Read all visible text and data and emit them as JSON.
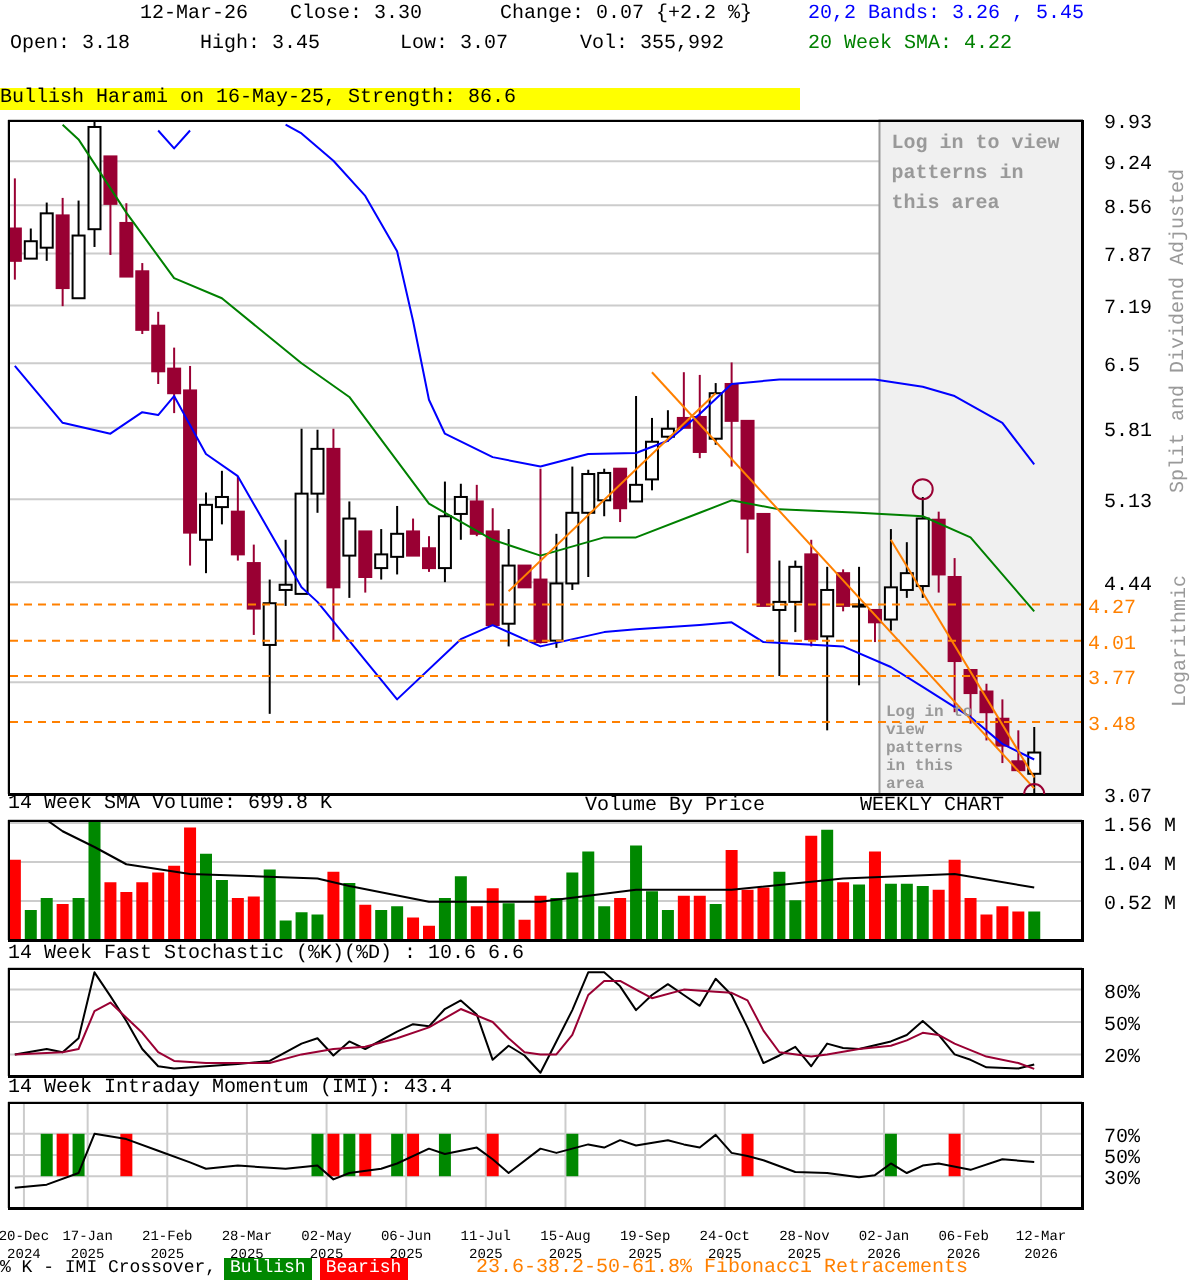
{
  "chart_data": [
    {
      "type": "candlestick",
      "x": [
        "2024-12-16",
        "2024-12-23",
        "2024-12-30",
        "2025-01-06",
        "2025-01-13",
        "2025-01-20",
        "2025-01-27",
        "2025-02-03",
        "2025-02-10",
        "2025-02-17",
        "2025-02-24",
        "2025-03-03",
        "2025-03-10",
        "2025-03-17",
        "2025-03-24",
        "2025-03-31",
        "2025-04-07",
        "2025-04-14",
        "2025-04-21",
        "2025-04-28",
        "2025-05-05",
        "2025-05-12",
        "2025-05-19",
        "2025-05-26",
        "2025-06-02",
        "2025-06-09",
        "2025-06-16",
        "2025-06-23",
        "2025-06-30",
        "2025-07-07",
        "2025-07-14",
        "2025-07-21",
        "2025-07-28",
        "2025-08-04",
        "2025-08-11",
        "2025-08-18",
        "2025-08-25",
        "2025-09-01",
        "2025-09-08",
        "2025-09-15",
        "2025-09-22",
        "2025-09-29",
        "2025-10-06",
        "2025-10-13",
        "2025-10-20",
        "2025-10-27",
        "2025-11-03",
        "2025-11-10",
        "2025-11-17",
        "2025-11-24",
        "2025-12-01",
        "2025-12-08",
        "2025-12-15",
        "2025-12-22",
        "2025-12-29",
        "2026-01-05",
        "2026-01-12",
        "2026-01-19",
        "2026-01-26",
        "2026-02-02",
        "2026-02-09",
        "2026-02-16",
        "2026-02-23",
        "2026-03-02",
        "2026-03-09"
      ],
      "ohlc": [
        [
          8.22,
          8.97,
          7.52,
          7.77
        ],
        [
          7.8,
          8.22,
          7.8,
          8.04
        ],
        [
          7.95,
          8.6,
          7.77,
          8.44
        ],
        [
          8.41,
          8.67,
          7.18,
          7.41
        ],
        [
          7.28,
          8.63,
          7.28,
          8.12
        ],
        [
          8.21,
          9.9,
          7.96,
          9.81
        ],
        [
          9.32,
          9.32,
          7.85,
          8.58
        ],
        [
          8.3,
          8.59,
          7.56,
          7.56
        ],
        [
          7.63,
          7.74,
          6.84,
          6.89
        ],
        [
          6.94,
          7.11,
          6.27,
          6.41
        ],
        [
          6.44,
          6.68,
          5.96,
          6.17
        ],
        [
          6.2,
          6.47,
          4.57,
          4.84
        ],
        [
          4.78,
          5.19,
          4.51,
          5.08
        ],
        [
          5.06,
          5.39,
          4.91,
          5.15
        ],
        [
          5.02,
          5.34,
          4.61,
          4.66
        ],
        [
          4.59,
          4.74,
          4.05,
          4.24
        ],
        [
          3.98,
          4.46,
          3.53,
          4.28
        ],
        [
          4.38,
          4.78,
          4.26,
          4.42
        ],
        [
          4.35,
          5.8,
          4.35,
          5.18
        ],
        [
          5.18,
          5.79,
          5.01,
          5.6
        ],
        [
          5.6,
          5.8,
          4.01,
          4.4
        ],
        [
          4.65,
          5.11,
          4.32,
          4.96
        ],
        [
          4.85,
          4.85,
          4.36,
          4.48
        ],
        [
          4.55,
          4.87,
          4.46,
          4.66
        ],
        [
          4.64,
          5.07,
          4.5,
          4.83
        ],
        [
          4.85,
          4.96,
          4.65,
          4.65
        ],
        [
          4.71,
          4.81,
          4.52,
          4.55
        ],
        [
          4.55,
          5.29,
          4.44,
          4.98
        ],
        [
          5.0,
          5.27,
          4.78,
          5.15
        ],
        [
          5.11,
          5.26,
          4.81,
          4.83
        ],
        [
          4.85,
          5.05,
          4.12,
          4.12
        ],
        [
          4.13,
          4.87,
          3.97,
          4.57
        ],
        [
          4.57,
          4.57,
          4.4,
          4.4
        ],
        [
          4.46,
          5.41,
          3.99,
          4.0
        ],
        [
          4.01,
          4.83,
          3.96,
          4.43
        ],
        [
          4.43,
          5.43,
          4.38,
          5.01
        ],
        [
          5.01,
          5.4,
          4.48,
          5.36
        ],
        [
          5.12,
          5.41,
          4.98,
          5.37
        ],
        [
          5.41,
          5.41,
          4.93,
          5.05
        ],
        [
          5.11,
          6.14,
          5.11,
          5.26
        ],
        [
          5.31,
          5.91,
          5.21,
          5.67
        ],
        [
          5.72,
          5.99,
          5.67,
          5.8
        ],
        [
          5.91,
          6.4,
          5.81,
          5.81
        ],
        [
          5.92,
          6.37,
          5.51,
          5.57
        ],
        [
          5.7,
          6.28,
          5.64,
          6.17
        ],
        [
          6.27,
          6.51,
          5.43,
          5.88
        ],
        [
          5.88,
          5.88,
          4.67,
          4.96
        ],
        [
          5.0,
          5.0,
          4.26,
          4.26
        ],
        [
          4.23,
          4.61,
          3.77,
          4.29
        ],
        [
          4.29,
          4.61,
          4.07,
          4.56
        ],
        [
          4.66,
          4.78,
          3.97,
          4.02
        ],
        [
          4.04,
          4.56,
          3.43,
          4.38
        ],
        [
          4.51,
          4.54,
          4.22,
          4.26
        ],
        [
          4.27,
          4.56,
          3.71,
          4.27
        ],
        [
          4.23,
          4.23,
          4.0,
          4.14
        ],
        [
          4.16,
          4.87,
          4.08,
          4.4
        ],
        [
          4.38,
          4.76,
          4.32,
          4.51
        ],
        [
          4.41,
          5.15,
          4.32,
          4.96
        ],
        [
          4.95,
          5.02,
          4.36,
          4.5
        ],
        [
          4.48,
          4.63,
          3.54,
          3.87
        ],
        [
          3.81,
          3.81,
          3.47,
          3.66
        ],
        [
          3.67,
          3.72,
          3.37,
          3.54
        ],
        [
          3.5,
          3.62,
          3.24,
          3.34
        ],
        [
          3.25,
          3.43,
          3.19,
          3.2
        ],
        [
          3.18,
          3.45,
          3.07,
          3.3
        ]
      ],
      "colors": [
        "#990033",
        "#ffffff",
        "#ffffff",
        "#990033",
        "#ffffff",
        "#ffffff",
        "#990033",
        "#990033",
        "#990033",
        "#990033",
        "#990033",
        "#990033",
        "#ffffff",
        "#ffffff",
        "#990033",
        "#990033",
        "#ffffff",
        "#ffffff",
        "#ffffff",
        "#ffffff",
        "#990033",
        "#ffffff",
        "#990033",
        "#ffffff",
        "#ffffff",
        "#990033",
        "#990033",
        "#ffffff",
        "#ffffff",
        "#990033",
        "#990033",
        "#ffffff",
        "#990033",
        "#990033",
        "#ffffff",
        "#ffffff",
        "#ffffff",
        "#ffffff",
        "#990033",
        "#ffffff",
        "#ffffff",
        "#ffffff",
        "#990033",
        "#990033",
        "#ffffff",
        "#990033",
        "#990033",
        "#990033",
        "#ffffff",
        "#ffffff",
        "#990033",
        "#ffffff",
        "#990033",
        "#ffffff",
        "#990033",
        "#ffffff",
        "#ffffff",
        "#ffffff",
        "#990033",
        "#990033",
        "#990033",
        "#990033",
        "#990033",
        "#990033",
        "#ffffff"
      ],
      "series": [
        {
          "type": "line",
          "name": "20,2 Bands: 3.26 , 5.45",
          "color": "#0000ff",
          "x": [
            "2025-02-17",
            "2025-02-24",
            "2025-03-03",
            "2025-03-10",
            "2025-04-14",
            "2025-04-21",
            "2025-05-05",
            "2025-05-19",
            "2025-06-02",
            "2025-06-09",
            "2025-06-16",
            "2025-06-23",
            "2025-07-14",
            "2025-08-04",
            "2025-08-25",
            "2025-09-15",
            "2025-09-29",
            "2025-10-13",
            "2025-10-27",
            "2025-11-17",
            "2025-12-29",
            "2026-01-19",
            "2026-02-02",
            "2026-02-23",
            "2026-03-09"
          ],
          "values": [
            9.75,
            9.45,
            9.75,
            null,
            9.85,
            9.7,
            9.25,
            8.7,
            7.9,
            7.0,
            6.1,
            5.75,
            5.52,
            5.43,
            5.55,
            5.56,
            5.68,
            5.95,
            6.27,
            6.32,
            6.32,
            6.24,
            6.14,
            5.86,
            5.45
          ]
        },
        {
          "type": "line",
          "color": "#0000ff",
          "x": [
            "2024-12-16",
            "2025-01-06",
            "2025-01-27",
            "2025-02-10",
            "2025-02-17",
            "2025-02-24",
            "2025-03-10",
            "2025-03-24",
            "2025-04-21",
            "2025-04-28",
            "2025-06-02",
            "2025-06-30",
            "2025-07-14",
            "2025-08-04",
            "2025-09-01",
            "2025-09-15",
            "2025-10-13",
            "2025-10-27",
            "2025-11-10",
            "2025-12-15",
            "2026-01-05",
            "2026-01-19",
            "2026-02-09",
            "2026-02-23",
            "2026-03-09"
          ],
          "values": [
            6.47,
            5.86,
            5.75,
            5.97,
            5.94,
            6.14,
            5.55,
            5.34,
            4.4,
            4.29,
            3.62,
            4.02,
            4.12,
            3.97,
            4.07,
            4.09,
            4.12,
            4.14,
            4.0,
            3.97,
            3.83,
            3.7,
            3.51,
            3.35,
            3.26
          ]
        },
        {
          "type": "line",
          "name": "20 Week SMA: 4.22",
          "color": "#008000",
          "x": [
            "2025-01-06",
            "2025-01-13",
            "2025-02-03",
            "2025-02-24",
            "2025-03-17",
            "2025-04-21",
            "2025-05-12",
            "2025-06-16",
            "2025-07-14",
            "2025-08-04",
            "2025-09-01",
            "2025-09-15",
            "2025-10-13",
            "2025-10-27",
            "2025-11-17",
            "2025-12-22",
            "2026-01-19",
            "2026-02-09",
            "2026-03-09"
          ],
          "values": [
            9.85,
            9.6,
            8.45,
            7.54,
            7.28,
            6.5,
            6.13,
            5.09,
            4.78,
            4.65,
            4.8,
            4.8,
            5.01,
            5.12,
            5.04,
            5.01,
            4.98,
            4.8,
            4.22
          ]
        },
        {
          "type": "line",
          "color": "#ff8000",
          "x": [
            "2025-07-21",
            "2025-10-20"
          ],
          "values": [
            4.37,
            6.17
          ]
        },
        {
          "type": "line",
          "color": "#ff8000",
          "x": [
            "2025-09-22",
            "2026-03-09"
          ],
          "values": [
            6.4,
            3.1
          ]
        },
        {
          "type": "line",
          "color": "#ff8000",
          "x": [
            "2026-01-05",
            "2026-03-09"
          ],
          "values": [
            4.78,
            3.16
          ]
        },
        {
          "type": "scatter",
          "marker": "circle",
          "color": "#990033",
          "x": [
            "2026-01-19",
            "2026-03-09"
          ],
          "values": [
            5.22,
            3.07
          ]
        }
      ],
      "ylabel": "Split and Dividend Adjusted",
      "log": true,
      "ylim": [
        3.07,
        9.93
      ],
      "yticks": [
        9.93,
        9.24,
        8.56,
        7.87,
        7.19,
        6.5,
        5.81,
        5.13,
        4.44,
        {
          "value": 3.73,
          "label": null
        },
        3.07
      ],
      "xlim": [
        "2024-12-13",
        "2026-03-30"
      ],
      "xticks": [
        {
          "value": "2025-01-17",
          "label": null
        },
        {
          "value": "2025-02-21",
          "label": null
        },
        {
          "value": "2025-03-28",
          "label": null
        },
        {
          "value": "2025-05-02",
          "label": null
        },
        {
          "value": "2025-06-06",
          "label": null
        },
        {
          "value": "2025-07-11",
          "label": null
        },
        {
          "value": "2025-08-15",
          "label": null
        },
        {
          "value": "2025-09-19",
          "label": null
        },
        {
          "value": "2025-10-24",
          "label": null
        },
        {
          "value": "2025-11-28",
          "label": null
        },
        {
          "value": "2026-01-02",
          "label": null
        },
        {
          "value": "2026-02-06",
          "label": null
        },
        {
          "value": "2026-03-12",
          "label": null
        }
      ],
      "tick_labels": "y",
      "grid": true,
      "ref_lines": [
        {
          "axis": "y",
          "value": 4.27,
          "label": "4.27",
          "color": "#ff8000",
          "line_style": "dashed"
        },
        {
          "axis": "y",
          "value": 4.01,
          "label": "4.01",
          "color": "#ff8000",
          "line_style": "dashed"
        },
        {
          "axis": "y",
          "value": 3.77,
          "label": "3.77",
          "color": "#ff8000",
          "line_style": "dashed"
        },
        {
          "axis": "y",
          "value": 3.48,
          "label": "3.48",
          "color": "#ff8000",
          "line_style": "dashed"
        }
      ],
      "bands": [
        {
          "axis": "x",
          "from": "2025-12-31",
          "to": "2026-03-30",
          "label": "Log in to view patterns in this area",
          "color": "#f0f0f0"
        }
      ],
      "annotations": [
        "12-Mar-26",
        "Close: 3.30",
        "Change: 0.07 {+2.2 %}",
        "Open: 3.18",
        "High: 3.45",
        "Low: 3.07",
        "Vol: 355,992",
        "Bullish Harami on 16-May-25, Strength: 86.6",
        "Log in to view patterns in this area",
        "Logarithmic",
        "Volume By Price",
        "WEEKLY CHART",
        "23.6-38.2-50-61.8% Fibonacci Retracements"
      ]
    },
    {
      "type": "bar",
      "title": "14 Week SMA Volume: 699.8 K",
      "x": [
        "2024-12-16",
        "2024-12-23",
        "2024-12-30",
        "2025-01-06",
        "2025-01-13",
        "2025-01-20",
        "2025-01-27",
        "2025-02-03",
        "2025-02-10",
        "2025-02-17",
        "2025-02-24",
        "2025-03-03",
        "2025-03-10",
        "2025-03-17",
        "2025-03-24",
        "2025-03-31",
        "2025-04-07",
        "2025-04-14",
        "2025-04-21",
        "2025-04-28",
        "2025-05-05",
        "2025-05-12",
        "2025-05-19",
        "2025-05-26",
        "2025-06-02",
        "2025-06-09",
        "2025-06-16",
        "2025-06-23",
        "2025-06-30",
        "2025-07-07",
        "2025-07-14",
        "2025-07-21",
        "2025-07-28",
        "2025-08-04",
        "2025-08-11",
        "2025-08-18",
        "2025-08-25",
        "2025-09-01",
        "2025-09-08",
        "2025-09-15",
        "2025-09-22",
        "2025-09-29",
        "2025-10-06",
        "2025-10-13",
        "2025-10-20",
        "2025-10-27",
        "2025-11-03",
        "2025-11-10",
        "2025-11-17",
        "2025-11-24",
        "2025-12-01",
        "2025-12-08",
        "2025-12-15",
        "2025-12-22",
        "2025-12-29",
        "2026-01-05",
        "2026-01-12",
        "2026-01-19",
        "2026-01-26",
        "2026-02-02",
        "2026-02-09",
        "2026-02-16",
        "2026-02-23",
        "2026-03-02",
        "2026-03-09"
      ],
      "values": [
        1.07,
        0.4,
        0.56,
        0.48,
        0.56,
        1.6,
        0.77,
        0.64,
        0.77,
        0.9,
        0.99,
        1.5,
        1.15,
        0.8,
        0.56,
        0.58,
        0.94,
        0.26,
        0.37,
        0.34,
        0.91,
        0.76,
        0.47,
        0.4,
        0.45,
        0.3,
        0.19,
        0.56,
        0.85,
        0.45,
        0.69,
        0.49,
        0.27,
        0.59,
        0.56,
        0.9,
        1.18,
        0.45,
        0.56,
        1.26,
        0.65,
        0.4,
        0.59,
        0.59,
        0.48,
        1.2,
        0.67,
        0.7,
        0.91,
        0.53,
        1.39,
        1.47,
        0.77,
        0.74,
        1.18,
        0.75,
        0.75,
        0.72,
        0.67,
        1.07,
        0.56,
        0.34,
        0.45,
        0.38,
        0.38
      ],
      "colors": [
        "#ff0000",
        "#008800",
        "#008800",
        "#ff0000",
        "#008800",
        "#008800",
        "#ff0000",
        "#ff0000",
        "#ff0000",
        "#ff0000",
        "#ff0000",
        "#ff0000",
        "#008800",
        "#008800",
        "#ff0000",
        "#ff0000",
        "#008800",
        "#008800",
        "#008800",
        "#008800",
        "#ff0000",
        "#008800",
        "#ff0000",
        "#008800",
        "#008800",
        "#ff0000",
        "#ff0000",
        "#008800",
        "#008800",
        "#ff0000",
        "#ff0000",
        "#008800",
        "#ff0000",
        "#ff0000",
        "#008800",
        "#008800",
        "#008800",
        "#008800",
        "#ff0000",
        "#008800",
        "#008800",
        "#008800",
        "#ff0000",
        "#ff0000",
        "#008800",
        "#ff0000",
        "#ff0000",
        "#ff0000",
        "#008800",
        "#008800",
        "#ff0000",
        "#008800",
        "#ff0000",
        "#008800",
        "#ff0000",
        "#008800",
        "#008800",
        "#008800",
        "#ff0000",
        "#ff0000",
        "#ff0000",
        "#ff0000",
        "#ff0000",
        "#ff0000",
        "#008800"
      ],
      "series": [
        {
          "type": "line",
          "color": "#000000",
          "x": [
            "2024-12-30",
            "2025-01-06",
            "2025-01-20",
            "2025-02-03",
            "2025-03-03",
            "2025-04-28",
            "2025-05-12",
            "2025-06-16",
            "2025-08-04",
            "2025-09-15",
            "2025-10-27",
            "2025-12-15",
            "2026-02-02",
            "2026-03-09"
          ],
          "values": [
            1.6,
            1.45,
            1.24,
            1.01,
            0.88,
            0.82,
            0.72,
            0.51,
            0.51,
            0.67,
            0.67,
            0.82,
            0.88,
            0.7
          ]
        }
      ],
      "ylim": [
        0,
        1.6
      ],
      "yticks": [
        {
          "value": 0.52,
          "label": "0.52 M"
        },
        {
          "value": 1.04,
          "label": "1.04 M"
        },
        {
          "value": 1.56,
          "label": "1.56 M"
        }
      ],
      "xlim": [
        "2024-12-13",
        "2026-03-30"
      ],
      "xticks": [
        {
          "value": "2025-01-17",
          "label": null
        },
        {
          "value": "2025-02-21",
          "label": null
        },
        {
          "value": "2025-03-28",
          "label": null
        },
        {
          "value": "2025-05-02",
          "label": null
        },
        {
          "value": "2025-06-06",
          "label": null
        },
        {
          "value": "2025-07-11",
          "label": null
        },
        {
          "value": "2025-08-15",
          "label": null
        },
        {
          "value": "2025-09-19",
          "label": null
        },
        {
          "value": "2025-10-24",
          "label": null
        },
        {
          "value": "2025-11-28",
          "label": null
        },
        {
          "value": "2026-01-02",
          "label": null
        },
        {
          "value": "2026-02-06",
          "label": null
        },
        {
          "value": "2026-03-12",
          "label": null
        }
      ],
      "tick_labels": "y",
      "grid": true
    },
    {
      "type": "line",
      "title": "14 Week Fast Stochastic (%K)(%D) : 10.6 6.6",
      "series": [
        {
          "color": "#000000",
          "x": [
            "2024-12-16",
            "2024-12-30",
            "2025-01-06",
            "2025-01-13",
            "2025-01-20",
            "2025-01-27",
            "2025-02-03",
            "2025-02-10",
            "2025-02-17",
            "2025-02-24",
            "2025-03-10",
            "2025-03-24",
            "2025-04-07",
            "2025-04-21",
            "2025-04-28",
            "2025-05-05",
            "2025-05-12",
            "2025-05-19",
            "2025-06-02",
            "2025-06-09",
            "2025-06-16",
            "2025-06-23",
            "2025-06-30",
            "2025-07-07",
            "2025-07-14",
            "2025-07-21",
            "2025-07-28",
            "2025-08-04",
            "2025-08-11",
            "2025-08-18",
            "2025-08-25",
            "2025-09-01",
            "2025-09-08",
            "2025-09-15",
            "2025-09-22",
            "2025-09-29",
            "2025-10-06",
            "2025-10-13",
            "2025-10-20",
            "2025-10-27",
            "2025-11-03",
            "2025-11-10",
            "2025-11-17",
            "2025-11-24",
            "2025-12-01",
            "2025-12-08",
            "2025-12-15",
            "2025-12-22",
            "2026-01-05",
            "2026-01-12",
            "2026-01-19",
            "2026-01-26",
            "2026-02-02",
            "2026-02-09",
            "2026-02-16",
            "2026-03-02",
            "2026-03-09"
          ],
          "values": [
            20,
            25,
            22,
            35,
            96,
            74,
            51,
            25,
            9,
            7,
            9,
            11,
            14,
            30,
            35,
            19,
            32,
            25,
            41,
            48,
            46,
            62,
            70,
            57,
            15,
            28,
            19,
            3,
            32,
            61,
            96,
            96,
            83,
            61,
            75,
            85,
            75,
            65,
            90,
            75,
            45,
            12,
            19,
            27,
            9,
            30,
            26,
            25,
            32,
            38,
            51,
            38,
            20,
            15,
            8,
            7,
            10.6
          ]
        },
        {
          "color": "#990033",
          "x": [
            "2024-12-16",
            "2025-01-06",
            "2025-01-13",
            "2025-01-20",
            "2025-01-27",
            "2025-02-10",
            "2025-02-17",
            "2025-02-24",
            "2025-03-10",
            "2025-04-07",
            "2025-04-21",
            "2025-05-05",
            "2025-05-19",
            "2025-06-02",
            "2025-06-16",
            "2025-06-30",
            "2025-07-14",
            "2025-07-21",
            "2025-07-28",
            "2025-08-04",
            "2025-08-11",
            "2025-08-18",
            "2025-08-25",
            "2025-09-01",
            "2025-09-08",
            "2025-09-15",
            "2025-09-22",
            "2025-10-06",
            "2025-10-20",
            "2025-10-27",
            "2025-11-03",
            "2025-11-10",
            "2025-11-17",
            "2025-12-01",
            "2025-12-08",
            "2025-12-22",
            "2026-01-05",
            "2026-01-12",
            "2026-01-19",
            "2026-01-26",
            "2026-02-02",
            "2026-02-16",
            "2026-03-02",
            "2026-03-09"
          ],
          "values": [
            20,
            22,
            25,
            60,
            68,
            40,
            22,
            14,
            12,
            12,
            20,
            25,
            27,
            35,
            45,
            62,
            50,
            35,
            22,
            20,
            20,
            38,
            75,
            88,
            88,
            80,
            72,
            80,
            78,
            77,
            70,
            42,
            22,
            18,
            20,
            25,
            28,
            33,
            40,
            38,
            30,
            18,
            12,
            6.6
          ]
        }
      ],
      "ylim": [
        0,
        100
      ],
      "yticks": [
        {
          "value": 20,
          "label": "20%"
        },
        {
          "value": 50,
          "label": "50%"
        },
        {
          "value": 80,
          "label": "80%"
        }
      ],
      "xlim": [
        "2024-12-13",
        "2026-03-30"
      ],
      "xticks": [
        {
          "value": "2025-01-17",
          "label": null
        },
        {
          "value": "2025-02-21",
          "label": null
        },
        {
          "value": "2025-03-28",
          "label": null
        },
        {
          "value": "2025-05-02",
          "label": null
        },
        {
          "value": "2025-06-06",
          "label": null
        },
        {
          "value": "2025-07-11",
          "label": null
        },
        {
          "value": "2025-08-15",
          "label": null
        },
        {
          "value": "2025-09-19",
          "label": null
        },
        {
          "value": "2025-10-24",
          "label": null
        },
        {
          "value": "2025-11-28",
          "label": null
        },
        {
          "value": "2026-01-02",
          "label": null
        },
        {
          "value": "2026-02-06",
          "label": null
        },
        {
          "value": "2026-03-12",
          "label": null
        }
      ],
      "tick_labels": "y",
      "grid": true
    },
    {
      "type": "line",
      "title": "14 Week Intraday Momentum (IMI): 43.4",
      "legend": "bottom",
      "legend_title": "% K - IMI Crossover,",
      "series": [
        {
          "color": "#000000",
          "x": [
            "2024-12-16",
            "2024-12-30",
            "2025-01-13",
            "2025-01-20",
            "2025-02-03",
            "2025-02-17",
            "2025-03-03",
            "2025-03-10",
            "2025-03-24",
            "2025-04-14",
            "2025-04-28",
            "2025-05-05",
            "2025-05-12",
            "2025-05-26",
            "2025-06-02",
            "2025-06-16",
            "2025-06-23",
            "2025-07-07",
            "2025-07-14",
            "2025-07-21",
            "2025-08-04",
            "2025-08-11",
            "2025-08-25",
            "2025-09-01",
            "2025-09-08",
            "2025-09-15",
            "2025-09-29",
            "2025-10-06",
            "2025-10-13",
            "2025-10-20",
            "2025-10-27",
            "2025-11-03",
            "2025-11-10",
            "2025-11-24",
            "2025-12-08",
            "2025-12-22",
            "2025-12-29",
            "2026-01-05",
            "2026-01-12",
            "2026-01-19",
            "2026-01-26",
            "2026-02-09",
            "2026-02-23",
            "2026-03-09"
          ],
          "values": [
            19,
            22,
            33,
            70,
            65,
            54,
            43,
            37,
            40,
            37,
            40,
            27,
            33,
            37,
            42,
            56,
            51,
            57,
            46,
            33,
            56,
            52,
            60,
            57,
            64,
            59,
            64,
            60,
            57,
            69,
            52,
            49,
            45,
            34,
            33,
            29,
            31,
            42,
            33,
            40,
            42,
            36,
            46,
            43.4
          ]
        },
        {
          "type": "bar",
          "name": "Bullish",
          "color": "#008800",
          "x": [
            "2024-12-30",
            "2025-01-13",
            "2025-04-28",
            "2025-05-12",
            "2025-06-02",
            "2025-06-23",
            "2025-08-18",
            "2026-01-05"
          ],
          "base": [
            30,
            30,
            30,
            30,
            30,
            30,
            30,
            30
          ],
          "values": [
            40,
            40,
            40,
            40,
            40,
            40,
            40,
            40
          ]
        },
        {
          "type": "bar",
          "name": "Bearish",
          "color": "#ff0000",
          "x": [
            "2025-01-06",
            "2025-02-03",
            "2025-05-05",
            "2025-05-19",
            "2025-06-09",
            "2025-07-14",
            "2025-11-03",
            "2026-02-02"
          ],
          "base": [
            30,
            30,
            30,
            30,
            30,
            30,
            30,
            30
          ],
          "values": [
            40,
            40,
            40,
            40,
            40,
            40,
            40,
            40
          ]
        }
      ],
      "ylim": [
        0,
        100
      ],
      "yticks": [
        {
          "value": 30,
          "label": "30%"
        },
        {
          "value": 50,
          "label": "50%"
        },
        {
          "value": 70,
          "label": "70%"
        }
      ],
      "xlim": [
        "2024-12-13",
        "2026-03-30"
      ],
      "xticks": [
        {
          "value": "2024-12-20",
          "label": "20-Dec 2024"
        },
        {
          "value": "2025-01-17",
          "label": "17-Jan 2025"
        },
        {
          "value": "2025-02-21",
          "label": "21-Feb 2025"
        },
        {
          "value": "2025-03-28",
          "label": "28-Mar 2025"
        },
        {
          "value": "2025-05-02",
          "label": "02-May 2025"
        },
        {
          "value": "2025-06-06",
          "label": "06-Jun 2025"
        },
        {
          "value": "2025-07-11",
          "label": "11-Jul 2025"
        },
        {
          "value": "2025-08-15",
          "label": "15-Aug 2025"
        },
        {
          "value": "2025-09-19",
          "label": "19-Sep 2025"
        },
        {
          "value": "2025-10-24",
          "label": "24-Oct 2025"
        },
        {
          "value": "2025-11-28",
          "label": "28-Nov 2025"
        },
        {
          "value": "2026-01-02",
          "label": "02-Jan 2026"
        },
        {
          "value": "2026-02-06",
          "label": "06-Feb 2026"
        },
        {
          "value": "2026-03-12",
          "label": "12-Mar 2026"
        }
      ],
      "grid": true
    }
  ]
}
